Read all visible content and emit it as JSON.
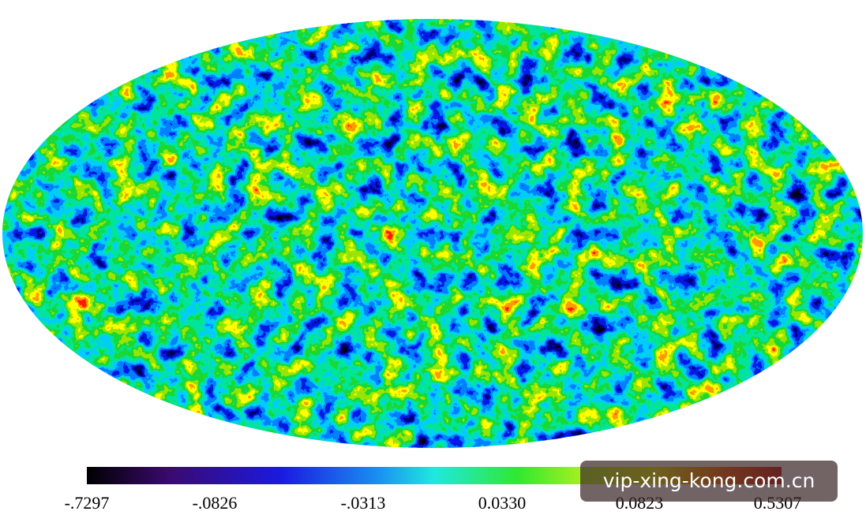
{
  "colorbar": {
    "ticks": [
      "-.7297",
      "-.0826",
      "-.0313",
      "0.0330",
      "0.0823",
      "0.5307"
    ]
  },
  "watermark": "vip-xing-kong.com.cn"
}
